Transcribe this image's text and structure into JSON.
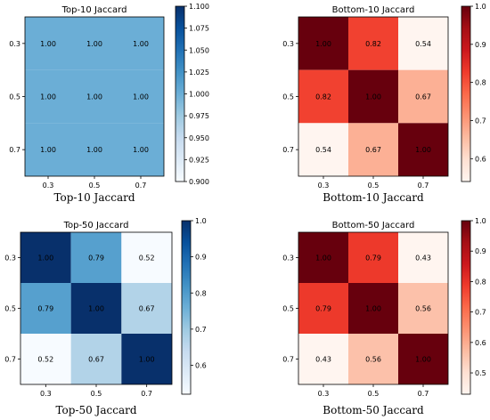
{
  "chart_data": [
    {
      "type": "heatmap",
      "title": "Top-10 Jaccard",
      "caption": "Top-10 Jaccard",
      "colormap": "Blues",
      "x_categories": [
        "0.3",
        "0.5",
        "0.7"
      ],
      "y_categories": [
        "0.3",
        "0.5",
        "0.7"
      ],
      "values": [
        [
          1.0,
          1.0,
          1.0
        ],
        [
          1.0,
          1.0,
          1.0
        ],
        [
          1.0,
          1.0,
          1.0
        ]
      ],
      "cell_labels": [
        [
          "1.00",
          "1.00",
          "1.00"
        ],
        [
          "1.00",
          "1.00",
          "1.00"
        ],
        [
          "1.00",
          "1.00",
          "1.00"
        ]
      ],
      "colorbar_range": [
        0.9,
        1.1
      ],
      "colorbar_ticks": [
        "1.100",
        "1.075",
        "1.050",
        "1.025",
        "1.000",
        "0.975",
        "0.950",
        "0.925",
        "0.900"
      ],
      "colorbar_tick_values": [
        1.1,
        1.075,
        1.05,
        1.025,
        1.0,
        0.975,
        0.95,
        0.925,
        0.9
      ]
    },
    {
      "type": "heatmap",
      "title": "Bottom-10 Jaccard",
      "caption": "Bottom-10 Jaccard",
      "colormap": "Reds",
      "x_categories": [
        "0.3",
        "0.5",
        "0.7"
      ],
      "y_categories": [
        "0.3",
        "0.5",
        "0.7"
      ],
      "values": [
        [
          1.0,
          0.82,
          0.54
        ],
        [
          0.82,
          1.0,
          0.67
        ],
        [
          0.54,
          0.67,
          1.0
        ]
      ],
      "cell_labels": [
        [
          "1.00",
          "0.82",
          "0.54"
        ],
        [
          "0.82",
          "1.00",
          "0.67"
        ],
        [
          "0.54",
          "0.67",
          "1.00"
        ]
      ],
      "colorbar_range": [
        0.54,
        1.0
      ],
      "colorbar_ticks": [
        "1.0",
        "0.9",
        "0.8",
        "0.7",
        "0.6"
      ],
      "colorbar_tick_values": [
        1.0,
        0.9,
        0.8,
        0.7,
        0.6
      ]
    },
    {
      "type": "heatmap",
      "title": "Top-50 Jaccard",
      "caption": "Top-50 Jaccard",
      "colormap": "Blues",
      "x_categories": [
        "0.3",
        "0.5",
        "0.7"
      ],
      "y_categories": [
        "0.3",
        "0.5",
        "0.7"
      ],
      "values": [
        [
          1.0,
          0.79,
          0.52
        ],
        [
          0.79,
          1.0,
          0.67
        ],
        [
          0.52,
          0.67,
          1.0
        ]
      ],
      "cell_labels": [
        [
          "1.00",
          "0.79",
          "0.52"
        ],
        [
          "0.79",
          "1.00",
          "0.67"
        ],
        [
          "0.52",
          "0.67",
          "1.00"
        ]
      ],
      "colorbar_range": [
        0.52,
        1.0
      ],
      "colorbar_ticks": [
        "1.0",
        "0.9",
        "0.8",
        "0.7",
        "0.6"
      ],
      "colorbar_tick_values": [
        1.0,
        0.9,
        0.8,
        0.7,
        0.6
      ]
    },
    {
      "type": "heatmap",
      "title": "Bottom-50 Jaccard",
      "caption": "Bottom-50 Jaccard",
      "colormap": "Reds",
      "x_categories": [
        "0.3",
        "0.5",
        "0.7"
      ],
      "y_categories": [
        "0.3",
        "0.5",
        "0.7"
      ],
      "values": [
        [
          1.0,
          0.79,
          0.43
        ],
        [
          0.79,
          1.0,
          0.56
        ],
        [
          0.43,
          0.56,
          1.0
        ]
      ],
      "cell_labels": [
        [
          "1.00",
          "0.79",
          "0.43"
        ],
        [
          "0.79",
          "1.00",
          "0.56"
        ],
        [
          "0.43",
          "0.56",
          "1.00"
        ]
      ],
      "colorbar_range": [
        0.43,
        1.0
      ],
      "colorbar_ticks": [
        "1.0",
        "0.9",
        "0.8",
        "0.7",
        "0.6",
        "0.5"
      ],
      "colorbar_tick_values": [
        1.0,
        0.9,
        0.8,
        0.7,
        0.6,
        0.5
      ]
    }
  ]
}
